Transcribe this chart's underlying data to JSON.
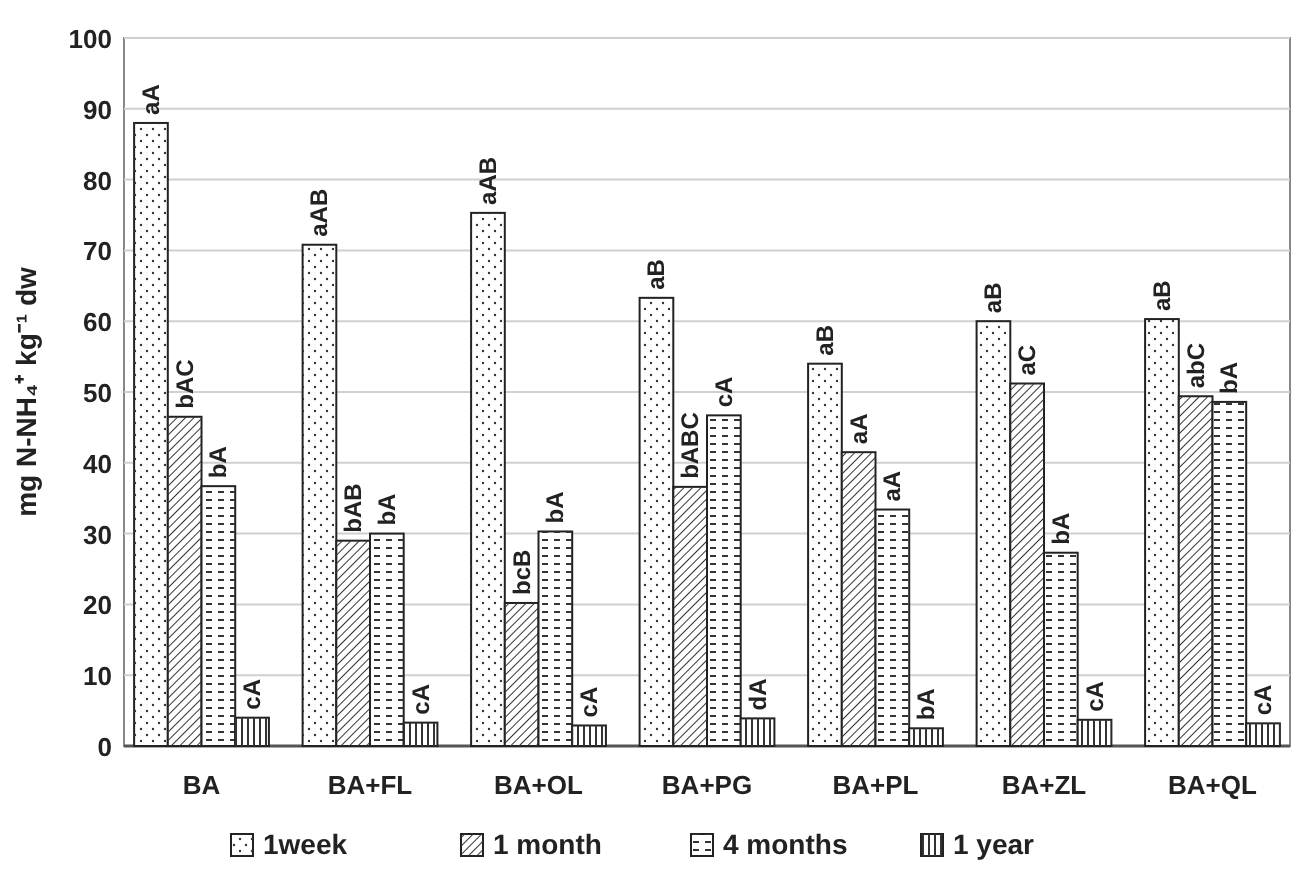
{
  "chart_data": {
    "type": "bar",
    "ylabel": "mg N-NH₄⁺ kg⁻¹ dw",
    "categories": [
      "BA",
      "BA+FL",
      "BA+OL",
      "BA+PG",
      "BA+PL",
      "BA+ZL",
      "BA+QL"
    ],
    "series": [
      {
        "name": "1week",
        "color": "#ffffff",
        "values": [
          88,
          70.8,
          75.3,
          63.3,
          54,
          60,
          60.3
        ],
        "value_labels": [
          "aA",
          "aAB",
          "aAB",
          "aB",
          "aB",
          "aB",
          "aB"
        ]
      },
      {
        "name": "1 month",
        "color": "#ffffff",
        "values": [
          46.5,
          29,
          20.2,
          36.6,
          41.5,
          51.2,
          49.4
        ],
        "value_labels": [
          "bAC",
          "bAB",
          "bcB",
          "bABC",
          "aA",
          "aC",
          "abC"
        ]
      },
      {
        "name": "4 months",
        "color": "#ffffff",
        "values": [
          36.7,
          30,
          30.3,
          46.7,
          33.4,
          27.3,
          48.6
        ],
        "value_labels": [
          "bA",
          "bA",
          "bA",
          "cA",
          "aA",
          "bA",
          "bA"
        ]
      },
      {
        "name": "1 year",
        "color": "#ffffff",
        "values": [
          4,
          3.3,
          2.9,
          3.9,
          2.5,
          3.7,
          3.2
        ],
        "value_labels": [
          "cA",
          "cA",
          "cA",
          "dA",
          "bA",
          "cA",
          "cA"
        ]
      }
    ],
    "ylim": [
      0,
      100
    ],
    "yticks": [
      0,
      10,
      20,
      30,
      40,
      50,
      60,
      70,
      80,
      90,
      100
    ],
    "grid": "y",
    "legend": "bottom"
  }
}
